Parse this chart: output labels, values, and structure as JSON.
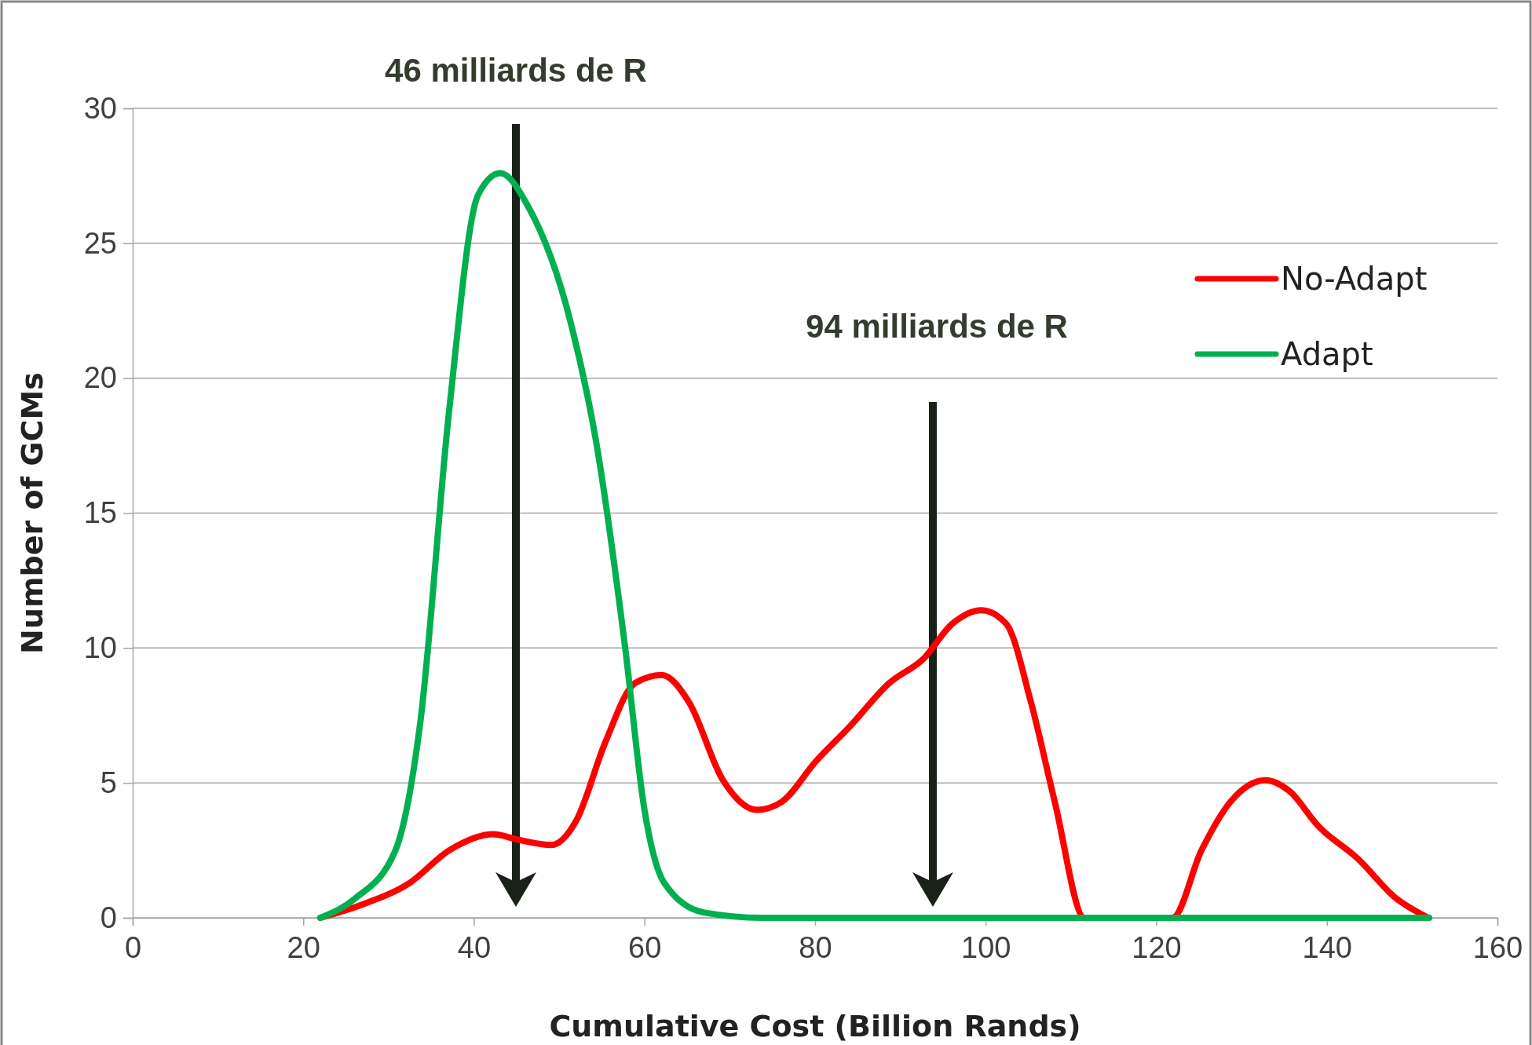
{
  "chart_data": {
    "type": "line",
    "xlabel": "Cumulative Cost (Billion Rands)",
    "ylabel": "Number of GCMs",
    "xlim": [
      0,
      160
    ],
    "xticks": [
      0,
      20,
      40,
      60,
      80,
      100,
      120,
      140,
      160
    ],
    "ylim": [
      0,
      30
    ],
    "yticks": [
      0,
      5,
      10,
      15,
      20,
      25,
      30
    ],
    "grid": "y",
    "legend": "right",
    "marker": "none",
    "line_style": "solid",
    "series": [
      {
        "name": "No-Adapt",
        "color": "#ff0000",
        "x": [
          22,
          27,
          32.5,
          37.1,
          42.3,
          45.1,
          49.1,
          52,
          55.4,
          58.9,
          62,
          65.2,
          69.2,
          73.2,
          76.1,
          80.1,
          84.1,
          88.7,
          92.7,
          96.1,
          99.5,
          102.4,
          105.3,
          108.1,
          111.6,
          121.9,
          125.3,
          128.7,
          132.8,
          135.6,
          139,
          143.6,
          148.2,
          151.9
        ],
        "values": [
          0,
          0.5,
          1.3,
          2.5,
          3.1,
          2.9,
          2.7,
          3.6,
          6.5,
          8.7,
          9,
          8,
          5.1,
          4,
          4.3,
          5.8,
          7.1,
          8.7,
          9.6,
          10.9,
          11.4,
          10.9,
          8,
          4.3,
          0,
          0,
          2.5,
          4.3,
          5.1,
          4.7,
          3.4,
          2.2,
          0.7,
          0
        ]
      },
      {
        "name": "Adapt",
        "color": "#00b050",
        "x": [
          22,
          26,
          30.8,
          33.7,
          37.1,
          40.5,
          43.1,
          46.3,
          51.4,
          54.3,
          57.7,
          60,
          62.3,
          66.9,
          73.8,
          80.6,
          100,
          120,
          140,
          152
        ],
        "values": [
          0,
          0.7,
          2.5,
          7.2,
          18.8,
          26.8,
          27.6,
          26.4,
          22,
          17.7,
          10.1,
          4,
          1.3,
          0.2,
          0,
          0,
          0,
          0,
          0,
          0
        ]
      }
    ],
    "annotations": [
      "46 milliards de R",
      "94 milliards de R"
    ]
  }
}
